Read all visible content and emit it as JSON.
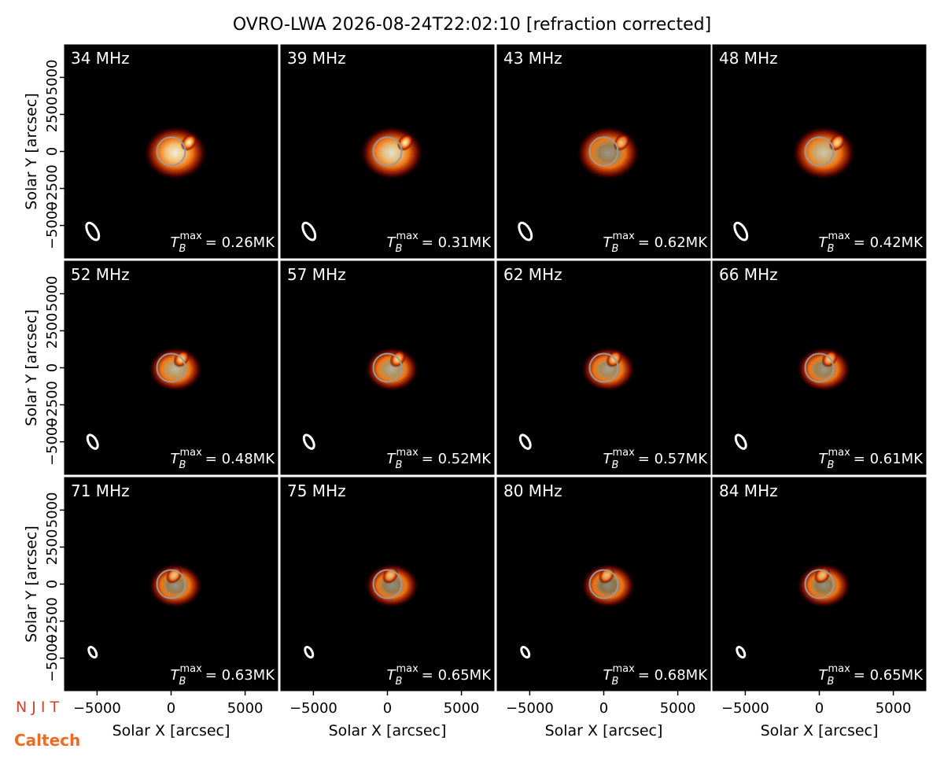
{
  "chart_data": {
    "type": "image-grid",
    "title": "OVRO-LWA 2026-08-24T22:02:10 [refraction corrected]",
    "xlabel": "Solar X [arcsec]",
    "ylabel": "Solar Y [arcsec]",
    "xlim": [
      -7200,
      7200
    ],
    "ylim": [
      -7200,
      7200
    ],
    "xticks": [
      {
        "value": -5000,
        "label": "−5000"
      },
      0,
      5000
    ],
    "yticks": [
      {
        "value": -5000,
        "label": "−5000"
      },
      {
        "value": -2500,
        "label": "−2500"
      },
      0,
      2500,
      5000
    ],
    "value_symbol": "T",
    "value_subscript": "B",
    "value_superscript": "max",
    "panels": [
      "34 MHz",
      "39 MHz",
      "43 MHz",
      "48 MHz",
      "52 MHz",
      "57 MHz",
      "62 MHz",
      "66 MHz",
      "71 MHz",
      "75 MHz",
      "80 MHz",
      "84 MHz"
    ],
    "values": [
      0.26,
      0.31,
      0.62,
      0.42,
      0.48,
      0.52,
      0.57,
      0.61,
      0.63,
      0.65,
      0.68,
      0.65
    ],
    "value_labels": [
      "= 0.26MK",
      "= 0.31MK",
      "= 0.62MK",
      "= 0.42MK",
      "= 0.48MK",
      "= 0.52MK",
      "= 0.57MK",
      "= 0.61MK",
      "= 0.63MK",
      "= 0.65MK",
      "= 0.68MK",
      "= 0.65MK"
    ],
    "logos": [
      "N J I T",
      "Caltech"
    ]
  }
}
